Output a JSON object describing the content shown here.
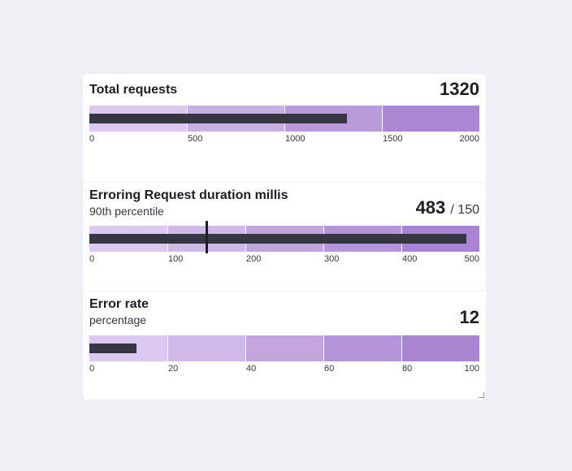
{
  "chart_data": [
    {
      "type": "bullet",
      "title": "Total requests",
      "subtitle": "",
      "value": 1320,
      "value_label": "1320",
      "target": null,
      "target_label": "",
      "xlim": [
        0,
        2000
      ],
      "ticks": [
        "0",
        "500",
        "1000",
        "1500",
        "2000"
      ],
      "bands": [
        0,
        500,
        1000,
        1500,
        2000
      ],
      "band_colors": [
        "#dcc8f0",
        "#c9b0e2",
        "#ba9bd9",
        "#ab87d1"
      ]
    },
    {
      "type": "bullet",
      "title": "Erroring Request duration millis",
      "subtitle": "90th percentile",
      "value": 483,
      "value_label": "483",
      "target": 150,
      "target_label": "/ 150",
      "xlim": [
        0,
        500
      ],
      "ticks": [
        "0",
        "100",
        "200",
        "300",
        "400",
        "500"
      ],
      "bands": [
        0,
        100,
        200,
        300,
        400,
        500
      ],
      "band_colors": [
        "#dcc8f0",
        "#d0b8e8",
        "#c3a4de",
        "#b694da",
        "#aa84d0"
      ]
    },
    {
      "type": "bullet",
      "title": "Error rate",
      "subtitle": "percentage",
      "value": 12,
      "value_label": "12",
      "target": null,
      "target_label": "",
      "xlim": [
        0,
        100
      ],
      "ticks": [
        "0",
        "20",
        "40",
        "60",
        "80",
        "100"
      ],
      "bands": [
        0,
        20,
        40,
        60,
        80,
        100
      ],
      "band_colors": [
        "#dcc8f0",
        "#d0b8e8",
        "#c3a4de",
        "#b694da",
        "#aa84d0"
      ]
    }
  ]
}
